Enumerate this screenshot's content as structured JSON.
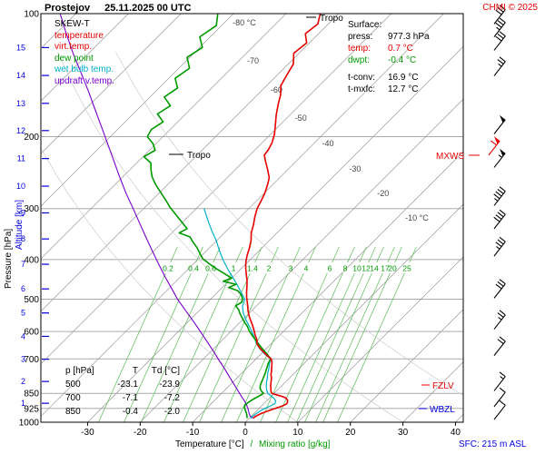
{
  "header": {
    "station": "Prostejov",
    "datetime": "25.11.2025 00 UTC",
    "copyright": "CHMI © 2025"
  },
  "legend": {
    "title": "SKEW-T",
    "items": [
      {
        "label": "temperature",
        "color": "#e60000"
      },
      {
        "label": "virt.temp.",
        "color": "#e60000"
      },
      {
        "label": "dew point",
        "color": "#009900"
      },
      {
        "label": "wet bulb temp.",
        "color": "#00b0c8"
      },
      {
        "label": "updraft v.temp.",
        "color": "#7a00cc"
      }
    ]
  },
  "surface_panel": {
    "title": "Surface:",
    "rows": [
      {
        "label": "press:",
        "value": "977.3 hPa",
        "color": "#000000"
      },
      {
        "label": "temp:",
        "value": "0.7 °C",
        "color": "#e60000"
      },
      {
        "label": "dwpt:",
        "value": "-0.4 °C",
        "color": "#009900"
      },
      {
        "label": "t-conv:",
        "value": "16.9 °C",
        "color": "#000000"
      },
      {
        "label": "t-mxfc:",
        "value": "12.7 °C",
        "color": "#000000"
      }
    ]
  },
  "table": {
    "header": [
      "p [hPa]",
      "T",
      "Td [°C]"
    ],
    "rows": [
      [
        "500",
        "-23.1",
        "-23.9"
      ],
      [
        "700",
        "-7.1",
        "-7.2"
      ],
      [
        "850",
        "-0.4",
        "-2.0"
      ]
    ]
  },
  "annotations": {
    "tropo": "Tropo",
    "mxws": "MXWS",
    "fzlv": "FZLV",
    "wbzl": "WBZL",
    "sfc": "SFC: 215 m ASL"
  },
  "axes": {
    "pressure_label": "Pressure [hPa]",
    "altitude_label": "Altitude [km]",
    "x_label_temp": "Temperature [°C]",
    "x_label_sep": "/",
    "x_label_mix": "Mixing ratio [g/kg]",
    "pressure_ticks": [
      100,
      200,
      300,
      400,
      500,
      600,
      700,
      850,
      925,
      1000
    ],
    "temp_ticks": [
      -30,
      -20,
      -10,
      0,
      10,
      20,
      30,
      40
    ],
    "altitude_ticks": [
      [
        15,
        121.1
      ],
      [
        14,
        141.7
      ],
      [
        13,
        165.8
      ],
      [
        12,
        193.3
      ],
      [
        11,
        226.3
      ],
      [
        10,
        264.4
      ],
      [
        9,
        307.4
      ],
      [
        8,
        356.0
      ],
      [
        7,
        410.6
      ],
      [
        6,
        471.8
      ],
      [
        5,
        540.2
      ],
      [
        4,
        616.4
      ],
      [
        3,
        701.1
      ],
      [
        2,
        794.9
      ],
      [
        1,
        898.7
      ]
    ]
  },
  "colors": {
    "red": "#e60000",
    "green": "#009900",
    "mix_green": "#55bb55",
    "cyan": "#00b0c8",
    "purple": "#7a00cc",
    "blue": "#0000dd",
    "grid": "#aaaaaa",
    "isotherm": "#999999",
    "adiabat": "#cccccc",
    "barb": "#000000"
  },
  "chart_data": {
    "type": "skewt",
    "pressure_range_hpa": [
      100,
      1000
    ],
    "temp_axis_range_c": [
      -30,
      40
    ],
    "skew_deg": 45,
    "isotherm_labels": [
      [
        -80,
        25,
        "-80 °C"
      ],
      [
        -70,
        67,
        "-70"
      ],
      [
        -60,
        99,
        "-60"
      ],
      [
        -50,
        130,
        "-50"
      ],
      [
        -40,
        158,
        "-40"
      ],
      [
        -30,
        186,
        "-30"
      ],
      [
        -20,
        213,
        "-20"
      ],
      [
        -10,
        240,
        "-10 °C"
      ]
    ],
    "mixing_ratio_labels": [
      [
        "0.2",
        185
      ],
      [
        "0.4",
        213
      ],
      [
        "0.6",
        232
      ],
      [
        "1",
        257
      ],
      [
        "1.4",
        278
      ],
      [
        "2",
        296
      ],
      [
        "3",
        320
      ],
      [
        "4",
        337
      ],
      [
        "6",
        363
      ],
      [
        "8",
        380
      ],
      [
        "10",
        393
      ],
      [
        "12",
        403
      ],
      [
        "14",
        412
      ],
      [
        "17",
        424
      ],
      [
        "20",
        432
      ],
      [
        "25",
        448
      ]
    ],
    "dry_adiabats_theta_c": [
      10,
      30,
      50
    ],
    "tropopause_hpa": [
      102,
      221
    ],
    "special_levels": {
      "mxws_hpa": 222,
      "fzlv_hpa": 811,
      "wbzl_hpa": 926
    },
    "series": [
      {
        "name": "updraft v.temp.",
        "color": "#7a00cc",
        "width": 1.1,
        "points": [
          [
            100,
            -113
          ],
          [
            112,
            -108
          ],
          [
            125,
            -103
          ],
          [
            140,
            -97.6
          ],
          [
            155,
            -92.8
          ],
          [
            172,
            -88
          ],
          [
            190,
            -83.4
          ],
          [
            210,
            -78.8
          ],
          [
            230,
            -74.6
          ],
          [
            252,
            -70.4
          ],
          [
            275,
            -66.3
          ],
          [
            300,
            -62
          ],
          [
            325,
            -58.1
          ],
          [
            352,
            -54.2
          ],
          [
            380,
            -50.4
          ],
          [
            410,
            -46.6
          ],
          [
            440,
            -43
          ],
          [
            472,
            -39.3
          ],
          [
            500,
            -36.3
          ],
          [
            532,
            -32.7
          ],
          [
            565,
            -29.2
          ],
          [
            600,
            -25.8
          ],
          [
            635,
            -22.6
          ],
          [
            670,
            -19.6
          ],
          [
            705,
            -16.8
          ],
          [
            740,
            -14.1
          ],
          [
            775,
            -11.6
          ],
          [
            810,
            -9.2
          ],
          [
            840,
            -7.2
          ],
          [
            865,
            -5.6
          ],
          [
            890,
            -4
          ],
          [
            910,
            -2.9
          ],
          [
            930,
            -1.9
          ],
          [
            950,
            -1
          ],
          [
            965,
            -0.3
          ],
          [
            977,
            0.7
          ]
        ]
      },
      {
        "name": "wet bulb temp.",
        "color": "#00b0c8",
        "width": 1.2,
        "points": [
          [
            300,
            -48.5
          ],
          [
            320,
            -45.6
          ],
          [
            340,
            -42.8
          ],
          [
            360,
            -40
          ],
          [
            380,
            -37.6
          ],
          [
            400,
            -35.2
          ],
          [
            420,
            -32.7
          ],
          [
            440,
            -30.2
          ],
          [
            460,
            -27.8
          ],
          [
            480,
            -25.6
          ],
          [
            500,
            -23.5
          ],
          [
            520,
            -22.6
          ],
          [
            540,
            -21.2
          ],
          [
            560,
            -19.5
          ],
          [
            580,
            -17.7
          ],
          [
            600,
            -16
          ],
          [
            620,
            -14.4
          ],
          [
            640,
            -13
          ],
          [
            660,
            -11.3
          ],
          [
            680,
            -9.4
          ],
          [
            700,
            -7.2
          ],
          [
            720,
            -6.5
          ],
          [
            740,
            -5.7
          ],
          [
            760,
            -5
          ],
          [
            780,
            -4.2
          ],
          [
            800,
            -3.5
          ],
          [
            820,
            -2.7
          ],
          [
            835,
            -2
          ],
          [
            850,
            -1.2
          ],
          [
            862,
            -0.1
          ],
          [
            875,
            1
          ],
          [
            888,
            1.8
          ],
          [
            900,
            2.1
          ],
          [
            912,
            1.7
          ],
          [
            925,
            1.1
          ],
          [
            940,
            0.7
          ],
          [
            955,
            0.4
          ],
          [
            967,
            0.3
          ],
          [
            977,
            0.2
          ]
        ]
      },
      {
        "name": "dew point",
        "color": "#009900",
        "width": 1.6,
        "points": [
          [
            100,
            -83
          ],
          [
            107,
            -81
          ],
          [
            114,
            -82
          ],
          [
            121,
            -79.5
          ],
          [
            128,
            -80.5
          ],
          [
            136,
            -78
          ],
          [
            144,
            -78.8
          ],
          [
            152,
            -76.5
          ],
          [
            160,
            -77.3
          ],
          [
            168,
            -74.5
          ],
          [
            176,
            -75.4
          ],
          [
            184,
            -72.8
          ],
          [
            192,
            -73.6
          ],
          [
            200,
            -73
          ],
          [
            208,
            -70.6
          ],
          [
            216,
            -68.9
          ],
          [
            224,
            -69.8
          ],
          [
            232,
            -67.3
          ],
          [
            241,
            -66
          ],
          [
            251,
            -64.4
          ],
          [
            262,
            -62.3
          ],
          [
            274,
            -59.8
          ],
          [
            286,
            -57.4
          ],
          [
            298,
            -55.2
          ],
          [
            310,
            -52.8
          ],
          [
            323,
            -50.3
          ],
          [
            336,
            -47.9
          ],
          [
            344,
            -48.6
          ],
          [
            352,
            -45.8
          ],
          [
            362,
            -44.3
          ],
          [
            374,
            -42.4
          ],
          [
            386,
            -40.8
          ],
          [
            398,
            -39.2
          ],
          [
            410,
            -36.9
          ],
          [
            422,
            -34.5
          ],
          [
            434,
            -32
          ],
          [
            444,
            -30
          ],
          [
            452,
            -31
          ],
          [
            460,
            -28
          ],
          [
            468,
            -28.8
          ],
          [
            477,
            -26.4
          ],
          [
            487,
            -25.1
          ],
          [
            500,
            -23.9
          ],
          [
            509,
            -23.5
          ],
          [
            519,
            -24
          ],
          [
            530,
            -22.7
          ],
          [
            542,
            -21.7
          ],
          [
            555,
            -20.5
          ],
          [
            569,
            -19.2
          ],
          [
            583,
            -17.8
          ],
          [
            597,
            -16.7
          ],
          [
            612,
            -15.3
          ],
          [
            627,
            -13.9
          ],
          [
            642,
            -12.5
          ],
          [
            657,
            -11.1
          ],
          [
            672,
            -9.7
          ],
          [
            687,
            -8.3
          ],
          [
            700,
            -7.2
          ],
          [
            715,
            -6.9
          ],
          [
            731,
            -6.4
          ],
          [
            747,
            -5.9
          ],
          [
            763,
            -5.4
          ],
          [
            779,
            -5
          ],
          [
            795,
            -4.6
          ],
          [
            811,
            -4.2
          ],
          [
            827,
            -3.6
          ],
          [
            840,
            -2.8
          ],
          [
            850,
            -2
          ],
          [
            861,
            -2.3
          ],
          [
            873,
            -2.7
          ],
          [
            885,
            -3
          ],
          [
            896,
            -3.2
          ],
          [
            906,
            -3.3
          ],
          [
            916,
            -3.1
          ],
          [
            926,
            -2.7
          ],
          [
            938,
            -2.1
          ],
          [
            950,
            -1.5
          ],
          [
            962,
            -1
          ],
          [
            970,
            -0.7
          ],
          [
            977,
            -0.4
          ]
        ]
      },
      {
        "name": "temperature",
        "color": "#e60000",
        "width": 1.6,
        "points": [
          [
            100,
            -63.5
          ],
          [
            106,
            -62
          ],
          [
            112,
            -62.5
          ],
          [
            118,
            -60.5
          ],
          [
            125,
            -61
          ],
          [
            133,
            -59
          ],
          [
            141,
            -58.2
          ],
          [
            150,
            -57.3
          ],
          [
            158,
            -55.6
          ],
          [
            167,
            -54.2
          ],
          [
            177,
            -52.6
          ],
          [
            187,
            -50.9
          ],
          [
            197,
            -49.3
          ],
          [
            207,
            -48.1
          ],
          [
            215,
            -47.5
          ],
          [
            222,
            -47.2
          ],
          [
            231,
            -45.6
          ],
          [
            241,
            -43.8
          ],
          [
            252,
            -42
          ],
          [
            263,
            -40.9
          ],
          [
            276,
            -39.8
          ],
          [
            289,
            -39
          ],
          [
            300,
            -38.4
          ],
          [
            314,
            -37.3
          ],
          [
            329,
            -36
          ],
          [
            344,
            -34.9
          ],
          [
            359,
            -33.5
          ],
          [
            374,
            -32.4
          ],
          [
            389,
            -31.5
          ],
          [
            404,
            -30.5
          ],
          [
            419,
            -29.3
          ],
          [
            434,
            -28
          ],
          [
            449,
            -26.7
          ],
          [
            464,
            -25.6
          ],
          [
            479,
            -24.6
          ],
          [
            492,
            -23.7
          ],
          [
            500,
            -23.1
          ],
          [
            516,
            -21.9
          ],
          [
            532,
            -20.8
          ],
          [
            548,
            -19.6
          ],
          [
            564,
            -18.3
          ],
          [
            580,
            -17
          ],
          [
            596,
            -15.8
          ],
          [
            612,
            -14.7
          ],
          [
            628,
            -13.5
          ],
          [
            644,
            -12.6
          ],
          [
            660,
            -11.2
          ],
          [
            676,
            -9.6
          ],
          [
            690,
            -8.2
          ],
          [
            700,
            -7.1
          ],
          [
            716,
            -6.2
          ],
          [
            732,
            -5.5
          ],
          [
            748,
            -4.8
          ],
          [
            764,
            -4.2
          ],
          [
            780,
            -3.4
          ],
          [
            796,
            -2.8
          ],
          [
            812,
            -2.2
          ],
          [
            828,
            -1.5
          ],
          [
            840,
            -1
          ],
          [
            850,
            -0.4
          ],
          [
            857,
            0.7
          ],
          [
            864,
            2
          ],
          [
            872,
            3.1
          ],
          [
            882,
            3.8
          ],
          [
            892,
            4.2
          ],
          [
            902,
            4.4
          ],
          [
            912,
            4
          ],
          [
            922,
            3.3
          ],
          [
            932,
            2.6
          ],
          [
            942,
            2
          ],
          [
            952,
            1.4
          ],
          [
            962,
            1
          ],
          [
            970,
            0.8
          ],
          [
            977,
            0.7
          ]
        ]
      }
    ],
    "winds": [
      {
        "p": 106,
        "spd": 30
      },
      {
        "p": 114,
        "spd": 35
      },
      {
        "p": 123,
        "spd": 30
      },
      {
        "p": 142,
        "spd": 25
      },
      {
        "p": 197,
        "spd": 50
      },
      {
        "p": 222,
        "spd": 60,
        "mxws": true
      },
      {
        "p": 238,
        "spd": 55
      },
      {
        "p": 295,
        "spd": 45
      },
      {
        "p": 336,
        "spd": 40
      },
      {
        "p": 392,
        "spd": 35
      },
      {
        "p": 497,
        "spd": 30
      },
      {
        "p": 592,
        "spd": 25
      },
      {
        "p": 687,
        "spd": 20
      },
      {
        "p": 838,
        "spd": 15
      },
      {
        "p": 916,
        "spd": 10
      },
      {
        "p": 985,
        "spd": 10
      }
    ]
  }
}
